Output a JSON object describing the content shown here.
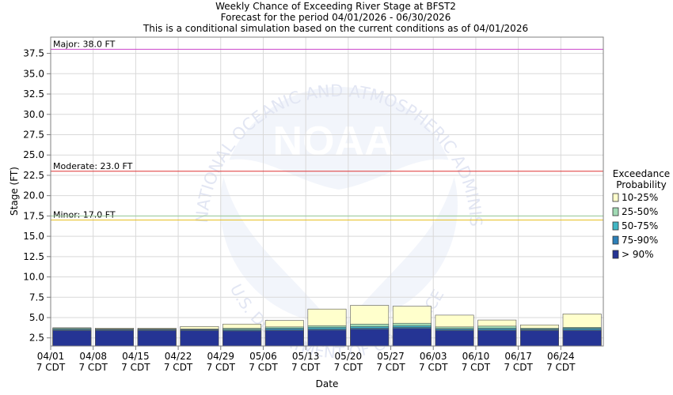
{
  "chart_data": {
    "type": "bar",
    "title_lines": [
      "Weekly Chance of Exceeding River Stage at BFST2",
      "Forecast for the period 04/01/2026 - 06/30/2026",
      "This is a conditional simulation based on the current conditions as of 04/01/2026"
    ],
    "xlabel": "Date",
    "ylabel": "Stage (FT)",
    "ylim": [
      1.5,
      39.5
    ],
    "yticks": [
      "2.5",
      "5.0",
      "7.5",
      "10.0",
      "12.5",
      "15.0",
      "17.5",
      "20.0",
      "22.5",
      "25.0",
      "27.5",
      "30.0",
      "32.5",
      "35.0",
      "37.5"
    ],
    "x_tick_labels": [
      "04/01",
      "04/08",
      "04/15",
      "04/22",
      "04/29",
      "05/06",
      "05/13",
      "05/20",
      "05/27",
      "06/03",
      "06/10",
      "06/17",
      "06/24"
    ],
    "x_tick_sublabel": "7 CDT",
    "grid": true,
    "reference_lines": [
      {
        "label": "Major: 38.0 FT",
        "value": 38.0,
        "color": "#cc44cc"
      },
      {
        "label": "Moderate: 23.0 FT",
        "value": 23.0,
        "color": "#dd3333"
      },
      {
        "label": "Minor: 17.0 FT",
        "value": 17.0,
        "color": "#e8c020"
      },
      {
        "label": "",
        "value": 17.5,
        "color": "#99cc99"
      }
    ],
    "legend": {
      "title_lines": [
        "Exceedance",
        "Probability"
      ],
      "position": "right",
      "entries": [
        {
          "label": "10-25%",
          "color": "#ffffcc"
        },
        {
          "label": "25-50%",
          "color": "#a1dab4"
        },
        {
          "label": "50-75%",
          "color": "#41b6c4"
        },
        {
          "label": "75-90%",
          "color": "#2c7fb8"
        },
        {
          "label": "> 90%",
          "color": "#253494"
        }
      ]
    },
    "series": [
      {
        "name": "> 90%",
        "values": [
          3.4,
          3.4,
          3.4,
          3.4,
          3.35,
          3.4,
          3.45,
          3.55,
          3.65,
          3.4,
          3.4,
          3.4,
          3.4
        ]
      },
      {
        "name": "75-90%",
        "values": [
          3.5,
          3.5,
          3.5,
          3.5,
          3.45,
          3.55,
          3.6,
          3.7,
          3.8,
          3.55,
          3.55,
          3.5,
          3.55
        ]
      },
      {
        "name": "50-75%",
        "values": [
          3.6,
          3.55,
          3.55,
          3.55,
          3.55,
          3.7,
          3.8,
          3.9,
          4.0,
          3.65,
          3.7,
          3.6,
          3.7
        ]
      },
      {
        "name": "25-50%",
        "values": [
          3.7,
          3.6,
          3.6,
          3.6,
          3.7,
          3.85,
          4.0,
          4.2,
          4.3,
          3.85,
          3.95,
          3.7,
          3.8
        ]
      },
      {
        "name": "10-25%",
        "values": [
          3.75,
          3.7,
          3.7,
          3.9,
          4.2,
          4.65,
          6.05,
          6.5,
          6.4,
          5.3,
          4.7,
          4.1,
          5.45
        ]
      }
    ]
  },
  "watermark": {
    "logo_text": "NOAA",
    "ring_text": "NATIONAL OCEANIC AND ATMOSPHERIC ADMINISTRATION",
    "lower_text": "U.S. DEPARTMENT OF COMMERCE"
  }
}
